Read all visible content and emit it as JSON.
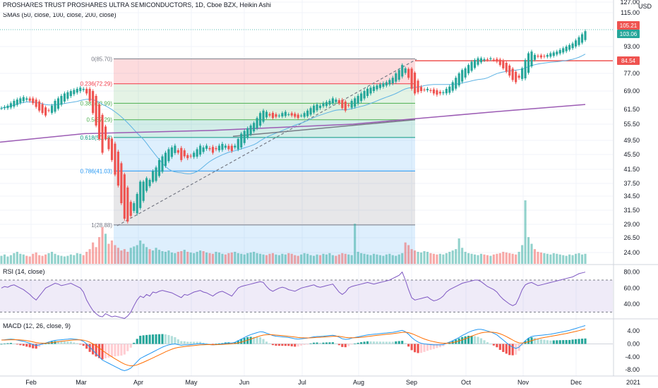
{
  "header": {
    "title": "PROSHARES TRUST PROSHARES ULTRA SEMICONDUCTORS, 1D, Cboe BZX, Heikin Ashi",
    "indicator": "SMAs (50, close, 100, close, 200, close)",
    "currency": "USD"
  },
  "price_axis": {
    "ticks": [
      "127.00",
      "115.00",
      "93.00",
      "77.00",
      "69.00",
      "61.50",
      "55.50",
      "49.50",
      "45.50",
      "41.50",
      "37.50",
      "34.50",
      "31.50",
      "29.00",
      "26.50",
      "24.00"
    ],
    "badges": [
      {
        "label": "105.21",
        "color": "#ef5350"
      },
      {
        "label": "103.06",
        "color": "#26a69a"
      },
      {
        "label": "84.54",
        "color": "#ef5350"
      }
    ]
  },
  "time_axis": [
    "Feb",
    "Mar",
    "Apr",
    "May",
    "Jun",
    "Jul",
    "Aug",
    "Sep",
    "Oct",
    "Nov",
    "Dec",
    "2021"
  ],
  "fib": {
    "levels": [
      {
        "label": "0(85.70)",
        "color": "#787b86"
      },
      {
        "label": "0.236(72.29)",
        "color": "#f23645"
      },
      {
        "label": "0.382(63.99)",
        "color": "#4caf50"
      },
      {
        "label": "0.5(57.29)",
        "color": "#4caf50"
      },
      {
        "label": "0.618(50.58)",
        "color": "#089981"
      },
      {
        "label": "0.786(41.03)",
        "color": "#2196f3"
      },
      {
        "label": "1(28.88)",
        "color": "#787b86"
      }
    ]
  },
  "rsi": {
    "label": "RSI (14, close)",
    "ticks": [
      "80.00",
      "60.00",
      "40.00"
    ]
  },
  "macd": {
    "label": "MACD (12, 26, close, 9)",
    "ticks": [
      "4.00",
      "0.00",
      "-4.00",
      "-8.00"
    ]
  },
  "colors": {
    "up": "#26a69a",
    "down": "#ef5350",
    "sma50": "#5eb3e4",
    "sma100": "#787b86",
    "sma200": "#9c5cb4",
    "rsi_line": "#7e57c2",
    "macd_line": "#2196f3",
    "signal_line": "#ff6d00"
  },
  "chart_data": {
    "type": "candlestick",
    "x_start": "2020-01-02",
    "x_end": "2020-12-04",
    "close": [
      62,
      62.5,
      63,
      64,
      65,
      65.5,
      66,
      66.5,
      66,
      65,
      64,
      62.5,
      61,
      60,
      59,
      61,
      63,
      65,
      66,
      67,
      68,
      68.5,
      69,
      69.5,
      70,
      70.5,
      70,
      68,
      65,
      60,
      55,
      50,
      46,
      50,
      47,
      44,
      40,
      37,
      33,
      30,
      29.5,
      30.5,
      33,
      35,
      38,
      38,
      39,
      38.5,
      41,
      42,
      44,
      45,
      46,
      47,
      47.5,
      48,
      46,
      44,
      45,
      44.5,
      45,
      46,
      47,
      48,
      47.5,
      48,
      47,
      46,
      47,
      48,
      48.5,
      48,
      47,
      46.5,
      48,
      50,
      52,
      53,
      54,
      55,
      56,
      58,
      60,
      61,
      60.5,
      59,
      58,
      58.5,
      59,
      60,
      60.5,
      59.5,
      59,
      58.5,
      58,
      59,
      60,
      61,
      62,
      63,
      63.5,
      63,
      64,
      64.5,
      65,
      66,
      65.5,
      64,
      62,
      61,
      63,
      65,
      66,
      67,
      68,
      69,
      70,
      70.5,
      71,
      71.5,
      72,
      72.5,
      73,
      74,
      75,
      77,
      79,
      82,
      80,
      75,
      70,
      68,
      68.5,
      69,
      69.5,
      70,
      69,
      68,
      67.5,
      68,
      68.5,
      70,
      71,
      73,
      75,
      77,
      79,
      80,
      82,
      84,
      85,
      86,
      86,
      85.5,
      85,
      86,
      85,
      84,
      82,
      80,
      78,
      76,
      74,
      73,
      75,
      80,
      85,
      89,
      90,
      88,
      87,
      86.5,
      87,
      88,
      89,
      89.5,
      90,
      91,
      92,
      93,
      94,
      95,
      97,
      99,
      101,
      103
    ],
    "volume": [
      12,
      14,
      11,
      13,
      16,
      18,
      15,
      14,
      12,
      11,
      15,
      17,
      13,
      12,
      14,
      16,
      18,
      15,
      13,
      12,
      11,
      12,
      14,
      13,
      16,
      15,
      13,
      18,
      22,
      32,
      25,
      40,
      55,
      45,
      30,
      35,
      28,
      24,
      20,
      22,
      18,
      24,
      26,
      28,
      35,
      30,
      25,
      22,
      20,
      24,
      21,
      19,
      18,
      20,
      17,
      16,
      18,
      19,
      21,
      18,
      17,
      16,
      18,
      20,
      19,
      17,
      16,
      15,
      18,
      17,
      15,
      14,
      16,
      17,
      18,
      16,
      15,
      14,
      16,
      17,
      18,
      16,
      15,
      14,
      13,
      15,
      16,
      14,
      13,
      15,
      14,
      16,
      15,
      13,
      12,
      14,
      16,
      15,
      13,
      12,
      14,
      13,
      15,
      14,
      16,
      13,
      12,
      14,
      16,
      15,
      14,
      13,
      60,
      18,
      16,
      15,
      14,
      13,
      15,
      14,
      13,
      12,
      14,
      15,
      13,
      12,
      14,
      16,
      32,
      28,
      22,
      20,
      18,
      17,
      19,
      18,
      16,
      15,
      14,
      15,
      14,
      16,
      18,
      20,
      22,
      38,
      24,
      18,
      16,
      15,
      14,
      13,
      15,
      14,
      13,
      12,
      14,
      15,
      16,
      18,
      17,
      16,
      15,
      14,
      18,
      28,
      95,
      40,
      30,
      22,
      18,
      17,
      16,
      15,
      14,
      16,
      15,
      14,
      13,
      12,
      14,
      13,
      15,
      16,
      14,
      15
    ],
    "rsi": [
      60,
      62,
      61,
      63,
      64,
      62,
      60,
      58,
      55,
      52,
      48,
      45,
      50,
      55,
      60,
      62,
      64,
      66,
      65,
      63,
      64,
      65,
      66,
      64,
      62,
      60,
      55,
      45,
      38,
      32,
      28,
      25,
      24,
      28,
      26,
      24,
      25,
      24,
      23,
      22,
      25,
      30,
      38,
      45,
      50,
      48,
      52,
      50,
      55,
      54,
      56,
      57,
      56,
      55,
      54,
      52,
      50,
      48,
      52,
      51,
      53,
      55,
      56,
      57,
      55,
      54,
      52,
      50,
      53,
      55,
      56,
      54,
      52,
      50,
      55,
      60,
      62,
      63,
      64,
      65,
      66,
      67,
      68,
      67,
      62,
      58,
      56,
      58,
      60,
      61,
      60,
      58,
      57,
      56,
      58,
      60,
      61,
      62,
      63,
      64,
      62,
      61,
      62,
      63,
      64,
      65,
      60,
      55,
      52,
      55,
      60,
      62,
      63,
      64,
      65,
      66,
      67,
      66,
      65,
      66,
      67,
      68,
      69,
      70,
      72,
      74,
      76,
      80,
      70,
      58,
      48,
      45,
      46,
      47,
      48,
      49,
      46,
      44,
      45,
      47,
      50,
      55,
      58,
      60,
      62,
      64,
      66,
      67,
      68,
      69,
      70,
      70,
      68,
      65,
      62,
      60,
      58,
      55,
      50,
      46,
      43,
      40,
      38,
      40,
      48,
      58,
      64,
      66,
      67,
      65,
      63,
      64,
      65,
      66,
      67,
      68,
      69,
      70,
      71,
      72,
      73,
      74,
      76,
      78,
      79,
      80
    ],
    "macd": [
      1.2,
      1.3,
      1.4,
      1.5,
      1.4,
      1.2,
      1,
      0.8,
      0.5,
      0.2,
      -0.2,
      -0.5,
      -0.3,
      0,
      0.3,
      0.6,
      0.9,
      1.1,
      1.2,
      1.3,
      1.4,
      1.5,
      1.6,
      1.5,
      1.4,
      1.2,
      0.8,
      0,
      -1,
      -2,
      -3,
      -4,
      -5,
      -5.5,
      -6,
      -6.5,
      -7,
      -7.5,
      -8,
      -8.3,
      -8,
      -7.5,
      -6.5,
      -5.5,
      -4.5,
      -4,
      -3.5,
      -3,
      -2.5,
      -2,
      -1.5,
      -1,
      -0.6,
      -0.3,
      -0.1,
      0,
      -0.2,
      -0.4,
      -0.3,
      -0.3,
      -0.2,
      -0.1,
      0,
      0.1,
      0,
      -0.1,
      -0.2,
      -0.3,
      -0.2,
      -0.1,
      0,
      0.2,
      0.3,
      0.3,
      0.5,
      1,
      1.5,
      2,
      2.5,
      2.9,
      3.2,
      3.5,
      3.8,
      3.7,
      3.3,
      3,
      2.6,
      2.4,
      2.3,
      2.2,
      2.1,
      2,
      1.8,
      1.6,
      1.5,
      1.6,
      1.7,
      1.8,
      2,
      2.2,
      2.3,
      2.3,
      2.4,
      2.5,
      2.6,
      2.7,
      2.5,
      2.1,
      1.6,
      1.4,
      1.5,
      1.8,
      2,
      2.2,
      2.4,
      2.6,
      2.8,
      2.9,
      3,
      3.1,
      3.2,
      3.3,
      3.4,
      3.5,
      3.6,
      3.8,
      4,
      4.2,
      3.8,
      3,
      2,
      1.2,
      0.6,
      0.2,
      0,
      -0.1,
      -0.2,
      -0.3,
      -0.3,
      -0.3,
      -0.2,
      0.2,
      0.6,
      1,
      1.5,
      2,
      2.6,
      3.1,
      3.6,
      4,
      4.3,
      4.5,
      4.5,
      4.3,
      4,
      3.7,
      3.3,
      2.8,
      2,
      1.2,
      0.4,
      -0.4,
      -1,
      -1.4,
      -1,
      0,
      1,
      1.8,
      2.3,
      2.5,
      2.6,
      2.7,
      2.8,
      2.9,
      3,
      3.2,
      3.4,
      3.6,
      3.8,
      4,
      4.2,
      4.5,
      4.8,
      5.1,
      5.4,
      5.7
    ]
  }
}
